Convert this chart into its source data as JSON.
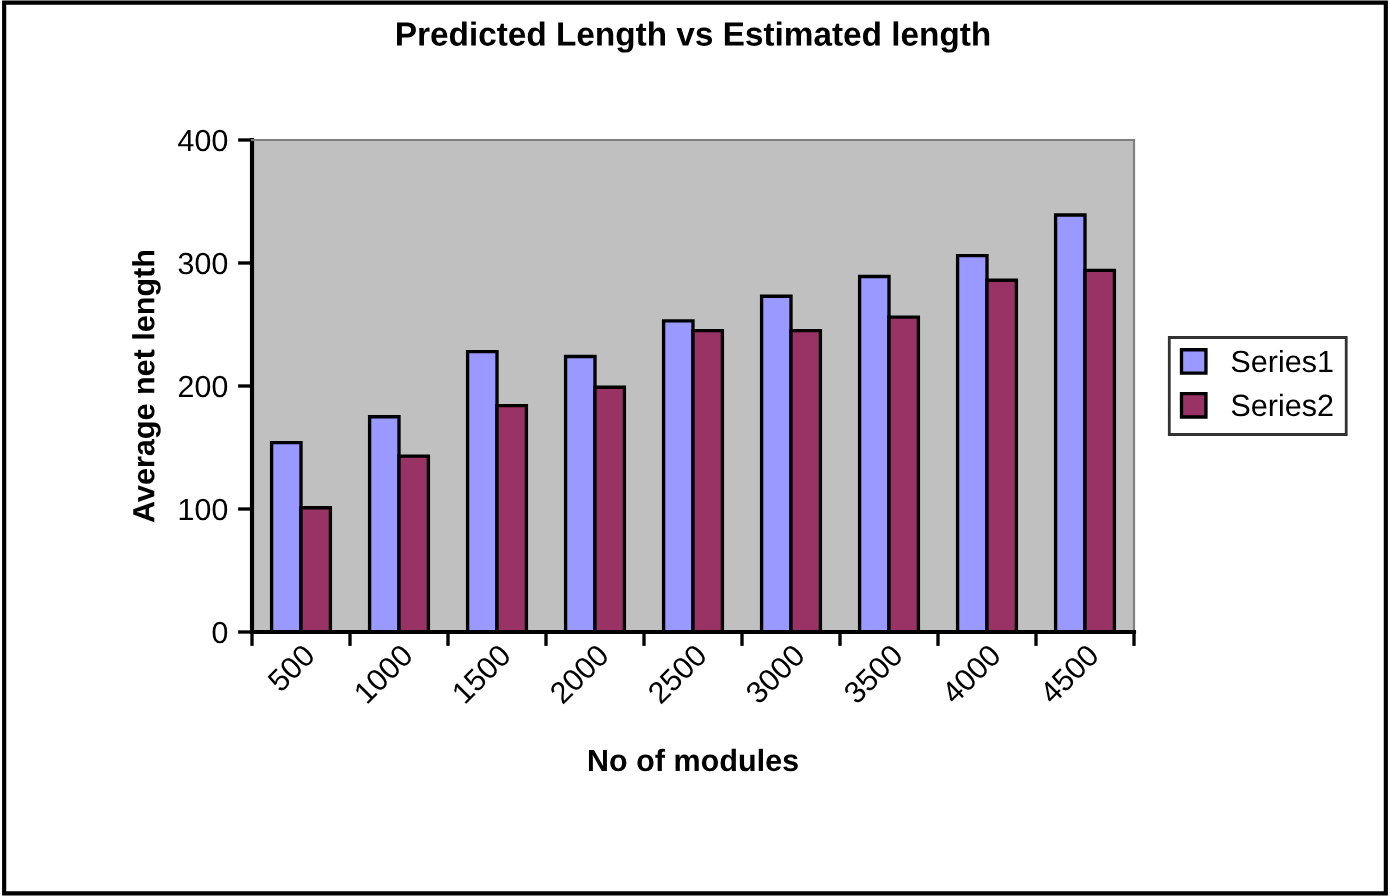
{
  "chart_data": {
    "type": "bar",
    "title": "Predicted Length vs Estimated length",
    "xlabel": "No of modules",
    "ylabel": "Average net length",
    "categories": [
      "500",
      "1000",
      "1500",
      "2000",
      "2500",
      "3000",
      "3500",
      "4000",
      "4500"
    ],
    "series": [
      {
        "name": "Series1",
        "color": "#9999ff",
        "values": [
          154,
          175,
          228,
          224,
          253,
          273,
          289,
          306,
          339
        ]
      },
      {
        "name": "Series2",
        "color": "#993366",
        "values": [
          101,
          143,
          184,
          199,
          245,
          245,
          256,
          286,
          294
        ]
      }
    ],
    "ylim": [
      0,
      400
    ],
    "yticks": [
      0,
      100,
      200,
      300,
      400
    ],
    "grid": false,
    "legend": "right"
  }
}
